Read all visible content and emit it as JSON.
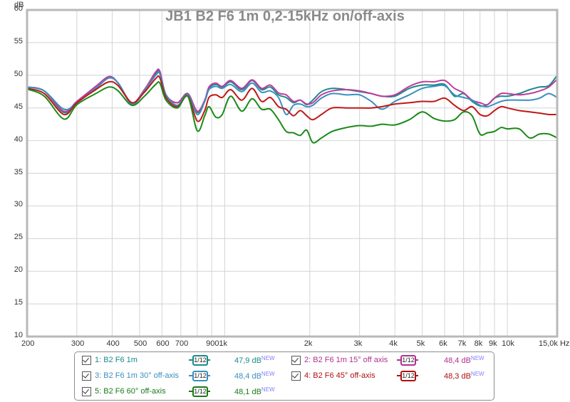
{
  "chart_data": {
    "type": "line",
    "title": "JB1 B2 F6 1m 0,2-15kHz on/off-axis",
    "xlabel": "Hz",
    "ylabel": "dB",
    "xscale": "log",
    "xlim": [
      200,
      15000
    ],
    "ylim": [
      10,
      60
    ],
    "grid": true,
    "y_ticks": [
      10,
      15,
      20,
      25,
      30,
      35,
      40,
      45,
      50,
      55,
      60
    ],
    "x_ticks": [
      {
        "f": 200,
        "label": "200"
      },
      {
        "f": 300,
        "label": "300"
      },
      {
        "f": 400,
        "label": "400"
      },
      {
        "f": 500,
        "label": "500"
      },
      {
        "f": 600,
        "label": "600"
      },
      {
        "f": 700,
        "label": "700"
      },
      {
        "f": 800,
        "label": ""
      },
      {
        "f": 900,
        "label": "900"
      },
      {
        "f": 1000,
        "label": "1k"
      },
      {
        "f": 2000,
        "label": "2k"
      },
      {
        "f": 3000,
        "label": "3k"
      },
      {
        "f": 4000,
        "label": "4k"
      },
      {
        "f": 5000,
        "label": "5k"
      },
      {
        "f": 6000,
        "label": "6k"
      },
      {
        "f": 7000,
        "label": "7k"
      },
      {
        "f": 8000,
        "label": "8k"
      },
      {
        "f": 9000,
        "label": "9k"
      },
      {
        "f": 10000,
        "label": "10k"
      },
      {
        "f": 15000,
        "label": "15,0k Hz"
      }
    ],
    "x": [
      200,
      230,
      270,
      300,
      350,
      390,
      420,
      470,
      520,
      570,
      590,
      620,
      680,
      740,
      800,
      850,
      880,
      930,
      980,
      1050,
      1150,
      1250,
      1350,
      1450,
      1550,
      1650,
      1750,
      1850,
      1950,
      2050,
      2200,
      2400,
      2700,
      3000,
      3300,
      3600,
      4000,
      4500,
      5000,
      5500,
      6000,
      6500,
      7000,
      7500,
      8000,
      8500,
      9000,
      9500,
      10000,
      11000,
      12000,
      13000,
      14000,
      15000
    ],
    "series": [
      {
        "name": "1: B2 F6 1m",
        "color": "#1a8a8a",
        "values": [
          48.2,
          47.6,
          44.3,
          45.8,
          48.3,
          49.6,
          48.8,
          45.6,
          47.8,
          50.3,
          50.4,
          47.0,
          45.8,
          47.2,
          44.3,
          46.0,
          48.0,
          48.6,
          48.2,
          49.0,
          47.8,
          49.2,
          47.8,
          48.2,
          47.0,
          46.6,
          45.8,
          46.2,
          45.5,
          46.2,
          47.5,
          48.0,
          47.8,
          47.5,
          47.2,
          46.8,
          46.8,
          48.0,
          48.5,
          48.5,
          48.6,
          46.8,
          47.2,
          46.0,
          45.3,
          45.5,
          46.5,
          46.8,
          46.8,
          47.2,
          47.8,
          48.2,
          48.4,
          50.0
        ]
      },
      {
        "name": "2: B2 F6 1m 15° off axis",
        "color": "#c03c9a",
        "values": [
          48.2,
          47.6,
          44.5,
          46.0,
          48.3,
          49.8,
          48.8,
          45.8,
          47.8,
          50.5,
          50.6,
          47.0,
          45.8,
          47.2,
          44.5,
          46.2,
          48.2,
          48.8,
          48.3,
          49.2,
          48.0,
          49.3,
          48.0,
          48.5,
          47.3,
          47.0,
          46.0,
          46.2,
          45.6,
          45.8,
          47.0,
          47.6,
          47.8,
          47.6,
          47.2,
          46.8,
          47.0,
          48.3,
          49.0,
          49.0,
          49.2,
          48.0,
          47.3,
          46.2,
          45.8,
          45.5,
          46.5,
          47.2,
          47.2,
          47.0,
          47.2,
          47.6,
          48.2,
          49.4
        ]
      },
      {
        "name": "3: B2 F6 1m 30° off-axis",
        "color": "#3a8fc0",
        "values": [
          48.2,
          47.6,
          44.8,
          45.8,
          48.0,
          49.6,
          48.8,
          45.6,
          47.6,
          50.0,
          50.2,
          47.0,
          45.4,
          47.0,
          44.0,
          46.0,
          47.8,
          48.3,
          48.0,
          48.6,
          47.5,
          48.8,
          47.4,
          47.6,
          46.6,
          44.0,
          45.4,
          45.6,
          45.2,
          45.4,
          46.5,
          47.2,
          47.0,
          47.0,
          46.0,
          44.8,
          46.0,
          47.0,
          48.0,
          48.3,
          48.4,
          47.0,
          46.6,
          46.2,
          45.4,
          45.2,
          45.6,
          46.0,
          46.2,
          46.2,
          46.2,
          46.5,
          47.2,
          46.6
        ]
      },
      {
        "name": "4: B2 F6 45° off-axis",
        "color": "#c01818",
        "values": [
          48.0,
          47.2,
          44.0,
          45.8,
          47.8,
          49.0,
          48.4,
          45.8,
          47.4,
          49.5,
          49.6,
          46.6,
          45.2,
          46.8,
          43.0,
          44.6,
          46.6,
          47.0,
          46.6,
          47.8,
          46.2,
          48.0,
          46.0,
          46.6,
          45.2,
          44.8,
          43.8,
          44.6,
          43.8,
          43.2,
          44.0,
          45.0,
          45.0,
          45.0,
          45.0,
          45.2,
          45.6,
          45.8,
          46.0,
          46.0,
          46.5,
          45.4,
          44.6,
          45.2,
          44.0,
          43.8,
          44.6,
          45.2,
          45.0,
          44.6,
          44.4,
          44.2,
          44.0,
          44.0
        ]
      },
      {
        "name": "5: B2 F6 60° off-axis",
        "color": "#1a8a1a",
        "values": [
          47.9,
          46.8,
          43.3,
          45.5,
          47.2,
          48.2,
          47.6,
          45.4,
          46.8,
          48.6,
          48.8,
          46.2,
          45.0,
          46.8,
          41.5,
          43.8,
          45.2,
          43.6,
          44.0,
          46.8,
          44.5,
          46.4,
          44.8,
          44.8,
          43.2,
          41.4,
          41.2,
          40.8,
          41.6,
          39.7,
          40.4,
          41.4,
          42.0,
          42.3,
          42.2,
          42.5,
          42.4,
          43.2,
          44.4,
          43.4,
          43.0,
          43.2,
          44.4,
          43.8,
          41.0,
          41.2,
          41.4,
          42.0,
          41.8,
          41.8,
          40.4,
          41.0,
          41.0,
          40.4
        ]
      }
    ]
  },
  "chart": {
    "title": "JB1 B2 F6 1m 0,2-15kHz on/off-axis",
    "y_unit": "dB"
  },
  "legend": {
    "items": [
      {
        "checked": true,
        "label": "1: B2 F6 1m",
        "smoothing": "1/12",
        "level": "47,9 dB",
        "badge": "NEW",
        "color": "#1a8a8a"
      },
      {
        "checked": true,
        "label": "2: B2 F6 1m 15° off axis",
        "smoothing": "1/12",
        "level": "48,4 dB",
        "badge": "NEW",
        "color": "#c03c9a"
      },
      {
        "checked": true,
        "label": "3: B2 F6 1m 30° off-axis",
        "smoothing": "1/12",
        "level": "48,4 dB",
        "badge": "NEW",
        "color": "#3a8fc0"
      },
      {
        "checked": true,
        "label": "4: B2 F6 45° off-axis",
        "smoothing": "1/12",
        "level": "48,3 dB",
        "badge": "NEW",
        "color": "#b01010"
      },
      {
        "checked": true,
        "label": "5: B2 F6 60° off-axis",
        "smoothing": "1/12",
        "level": "48,1 dB",
        "badge": "NEW",
        "color": "#1a8a1a"
      }
    ]
  }
}
